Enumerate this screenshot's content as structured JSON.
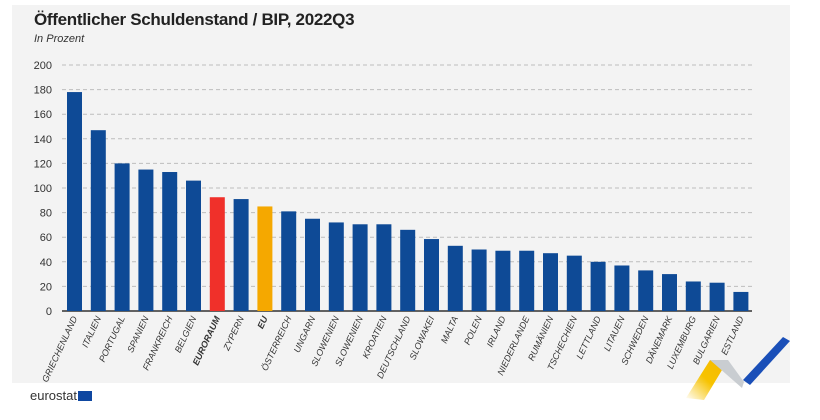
{
  "chart_data": {
    "type": "bar",
    "title": "Öffentlicher Schuldenstand / BIP, 2022Q3",
    "subtitle": "In Prozent",
    "xlabel": "",
    "ylabel": "",
    "ylim": [
      0,
      200
    ],
    "yticks": [
      "0",
      "20",
      "40",
      "60",
      "80",
      "100",
      "120",
      "140",
      "160",
      "180",
      "200"
    ],
    "grid": true,
    "categories": [
      "GRIECHENLAND",
      "ITALIEN",
      "PORTUGAL",
      "SPANIEN",
      "FRANKREICH",
      "BELGIEN",
      "EURORAUM",
      "ZYPERN",
      "EU",
      "ÖSTERREICH",
      "UNGARN",
      "SLOWENIEN",
      "SLOWENIEN",
      "KROATIEN",
      "DEUTSCHLAND",
      "SLOWAKEI",
      "MALTA",
      "POLEN",
      "IRLAND",
      "NIEDERLANDE",
      "RUMÄNIEN",
      "TSCHECHIEN",
      "LETTLAND",
      "LITAUEN",
      "SCHWEDEN",
      "DÄNEMARK",
      "LUXEMBURG",
      "BULGARIEN",
      "ESTLAND"
    ],
    "values": [
      178,
      147,
      120,
      115,
      113,
      106,
      92.5,
      91,
      85,
      81,
      75,
      72,
      70.5,
      70.5,
      66,
      58.5,
      53,
      50,
      49,
      49,
      47,
      45,
      40,
      37,
      33,
      30,
      24,
      23,
      15.5
    ],
    "bold_categories": [
      "EURORAUM",
      "EU"
    ],
    "colors": {
      "default": "#0e4a96",
      "EURORAUM": "#f0302a",
      "EU": "#f5a800",
      "grid": "#bdbdbd",
      "axis": "#333333"
    }
  },
  "footer": {
    "logo_text": "eurostat"
  }
}
